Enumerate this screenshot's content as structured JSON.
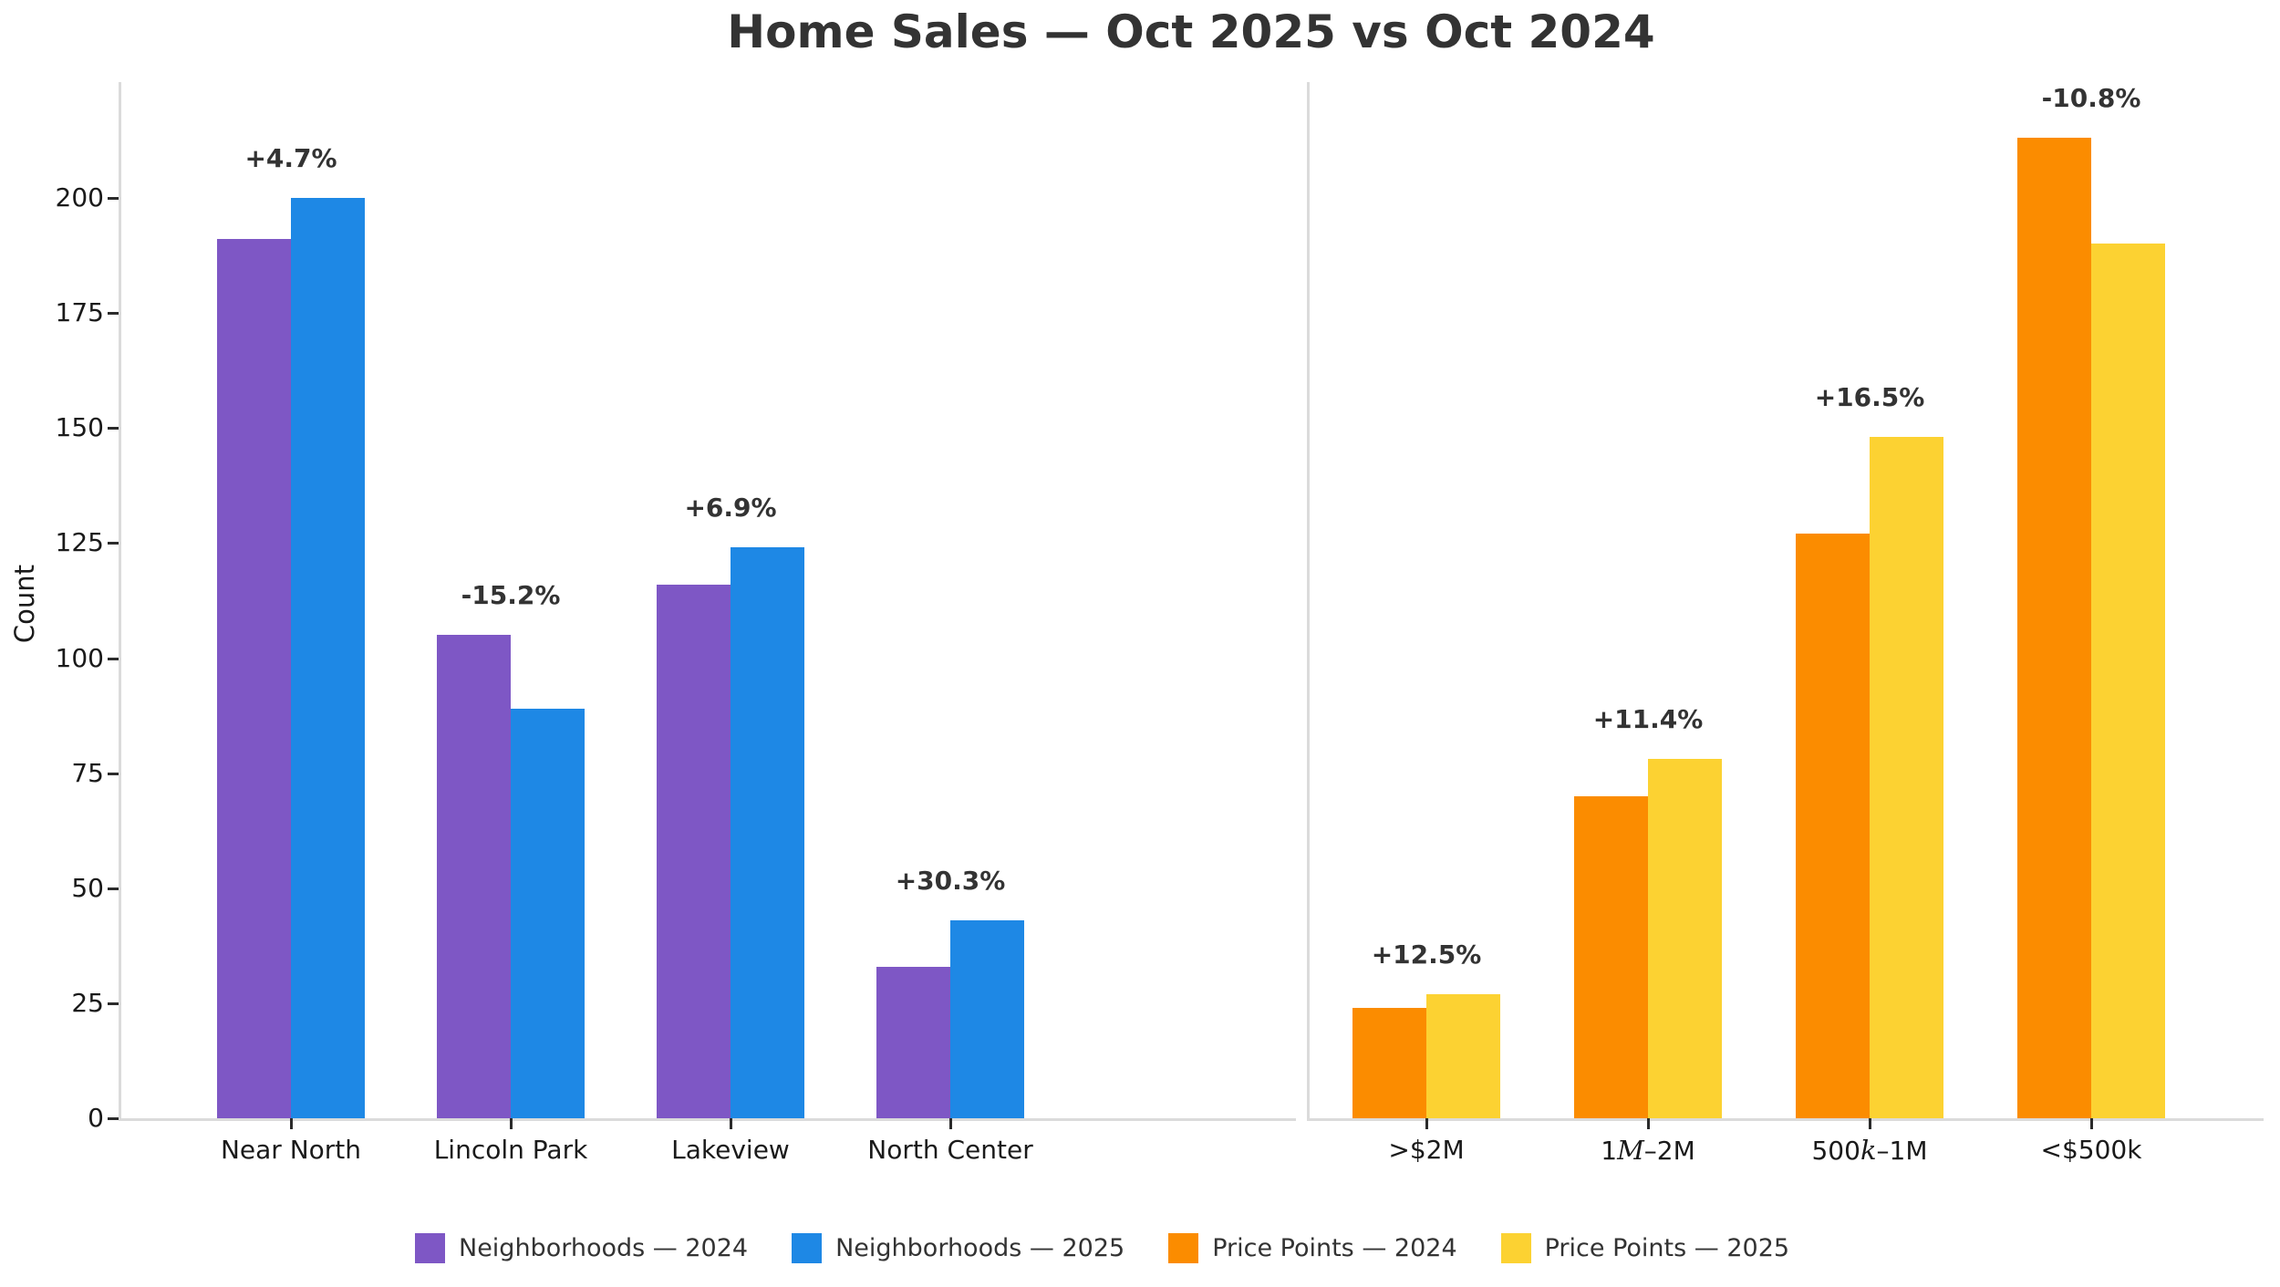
{
  "title": "Home Sales — Oct 2025 vs Oct 2024",
  "ylabel": "Count",
  "colors": {
    "neighborhoods_2024": "#7E57C5",
    "neighborhoods_2025": "#1E88E5",
    "price_points_2024": "#FB8C00",
    "price_points_2025": "#FCD232",
    "axis_line": "#dbdbdb",
    "tick_mark": "#2b2b2b",
    "tick_text": "#1a1a1a",
    "heading_text": "#333333"
  },
  "y_axis": {
    "ticks": [
      0,
      25,
      50,
      75,
      100,
      125,
      150,
      175,
      200
    ],
    "ylim": [
      0,
      225
    ]
  },
  "chart_data": [
    {
      "type": "bar",
      "panel": "neighborhoods",
      "categories": [
        "Near North",
        "Lincoln Park",
        "Lakeview",
        "North Center"
      ],
      "series": [
        {
          "name": "Neighborhoods — 2024",
          "color_key": "neighborhoods_2024",
          "values": [
            191,
            105,
            116,
            33
          ]
        },
        {
          "name": "Neighborhoods — 2025",
          "color_key": "neighborhoods_2025",
          "values": [
            200,
            89,
            124,
            43
          ]
        }
      ],
      "annotations": [
        "+4.7%",
        "-15.2%",
        "+6.9%",
        "+30.3%"
      ]
    },
    {
      "type": "bar",
      "panel": "price_points",
      "categories": [
        ">$2M",
        [
          {
            "t": "1"
          },
          {
            "t": "M",
            "i": true
          },
          {
            "t": "–2M"
          }
        ],
        [
          {
            "t": "500"
          },
          {
            "t": "k",
            "i": true
          },
          {
            "t": "–1M"
          }
        ],
        "<$500k"
      ],
      "series": [
        {
          "name": "Price Points — 2024",
          "color_key": "price_points_2024",
          "values": [
            24,
            70,
            127,
            213
          ]
        },
        {
          "name": "Price Points — 2025",
          "color_key": "price_points_2025",
          "values": [
            27,
            78,
            148,
            190
          ]
        }
      ],
      "annotations": [
        "+12.5%",
        "+11.4%",
        "+16.5%",
        "-10.8%"
      ]
    }
  ],
  "legend": [
    {
      "chart": 0,
      "series": 0
    },
    {
      "chart": 0,
      "series": 1
    },
    {
      "chart": 1,
      "series": 0
    },
    {
      "chart": 1,
      "series": 1
    }
  ]
}
